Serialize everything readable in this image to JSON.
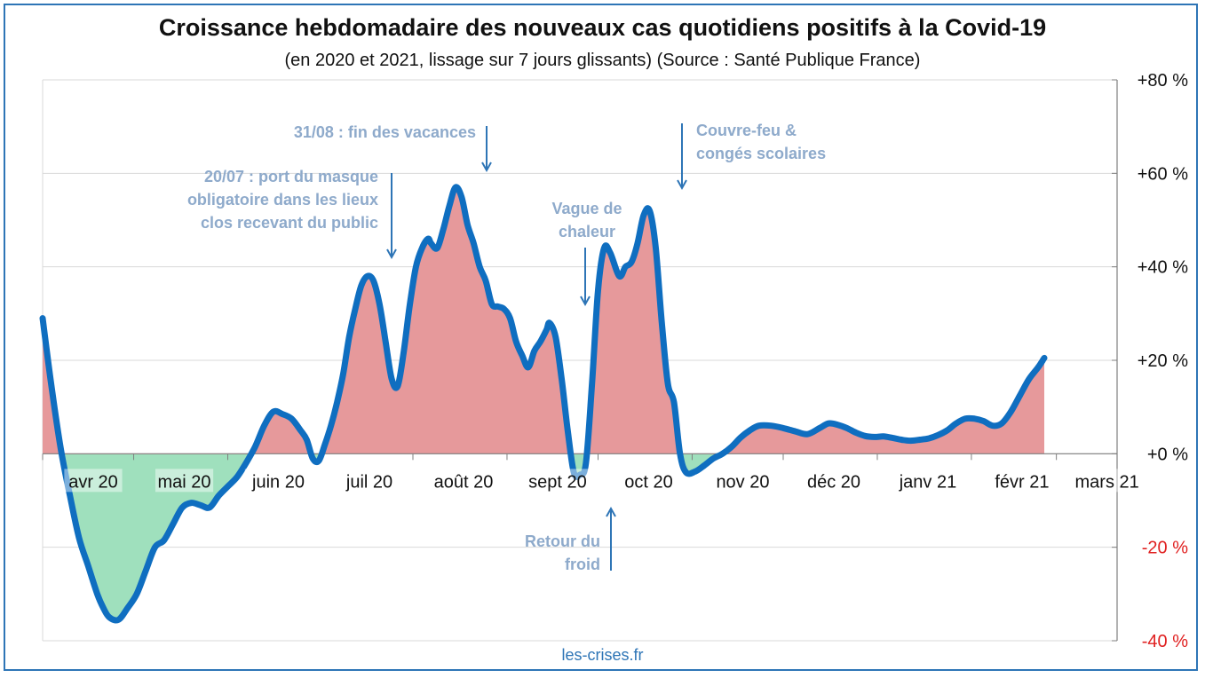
{
  "chart_data": {
    "type": "area",
    "title": "Croissance hebdomadaire des nouveaux cas quotidiens positifs à la Covid-19",
    "subtitle": "(en 2020 et 2021, lissage sur 7 jours glissants) (Source : Santé Publique France)",
    "ylim": [
      -40,
      80
    ],
    "yticks": [
      {
        "value": 80,
        "label": "+80 %",
        "negative": false
      },
      {
        "value": 60,
        "label": "+60 %",
        "negative": false
      },
      {
        "value": 40,
        "label": "+40 %",
        "negative": false
      },
      {
        "value": 20,
        "label": "+20 %",
        "negative": false
      },
      {
        "value": 0,
        "label": "+0 %",
        "negative": false
      },
      {
        "value": -20,
        "label": "-20 %",
        "negative": true
      },
      {
        "value": -40,
        "label": "-40 %",
        "negative": true
      }
    ],
    "xticks": [
      {
        "label": "avr 20",
        "day": 0
      },
      {
        "label": "mai 20",
        "day": 30
      },
      {
        "label": "juin 20",
        "day": 61
      },
      {
        "label": "juil 20",
        "day": 91
      },
      {
        "label": "août 20",
        "day": 122
      },
      {
        "label": "sept 20",
        "day": 153
      },
      {
        "label": "oct 20",
        "day": 183
      },
      {
        "label": "nov 20",
        "day": 214
      },
      {
        "label": "déc 20",
        "day": 244
      },
      {
        "label": "janv 21",
        "day": 275
      },
      {
        "label": "févr 21",
        "day": 306
      },
      {
        "label": "mars 21",
        "day": 334
      }
    ],
    "xrange_days": [
      0,
      354
    ],
    "grid": true,
    "positive_color": "#e6999b",
    "negative_color": "#9fe0bd",
    "line_color": "#0f6ec0",
    "series": [
      {
        "points": [
          [
            0,
            29
          ],
          [
            3,
            14
          ],
          [
            6,
            1
          ],
          [
            9,
            -9
          ],
          [
            12,
            -18
          ],
          [
            15,
            -24
          ],
          [
            18,
            -30
          ],
          [
            20,
            -33
          ],
          [
            22,
            -35
          ],
          [
            25,
            -35.5
          ],
          [
            28,
            -33
          ],
          [
            31,
            -30
          ],
          [
            34,
            -25
          ],
          [
            37,
            -20
          ],
          [
            40,
            -18.5
          ],
          [
            43,
            -15
          ],
          [
            46,
            -11.5
          ],
          [
            49,
            -10.5
          ],
          [
            52,
            -11
          ],
          [
            55,
            -11.5
          ],
          [
            58,
            -9
          ],
          [
            61,
            -7
          ],
          [
            64,
            -5
          ],
          [
            67,
            -2
          ],
          [
            70,
            1.5
          ],
          [
            73,
            6
          ],
          [
            76,
            9
          ],
          [
            79,
            8.5
          ],
          [
            82,
            7.5
          ],
          [
            85,
            5
          ],
          [
            87,
            3
          ],
          [
            89,
            -1
          ],
          [
            91,
            -1.5
          ],
          [
            93,
            2
          ],
          [
            95,
            6
          ],
          [
            97,
            11
          ],
          [
            99,
            17
          ],
          [
            101,
            25
          ],
          [
            103,
            31
          ],
          [
            105,
            36
          ],
          [
            107,
            38
          ],
          [
            109,
            37
          ],
          [
            111,
            32
          ],
          [
            113,
            24
          ],
          [
            115,
            16
          ],
          [
            117,
            14.5
          ],
          [
            119,
            22
          ],
          [
            121,
            32
          ],
          [
            123,
            40
          ],
          [
            125,
            44
          ],
          [
            127,
            46
          ],
          [
            128,
            45
          ],
          [
            130,
            44
          ],
          [
            132,
            48
          ],
          [
            134,
            53
          ],
          [
            136,
            57
          ],
          [
            138,
            55
          ],
          [
            140,
            49
          ],
          [
            142,
            45
          ],
          [
            144,
            40
          ],
          [
            146,
            37
          ],
          [
            148,
            32
          ],
          [
            150,
            31.5
          ],
          [
            152,
            31
          ],
          [
            154,
            29
          ],
          [
            156,
            24
          ],
          [
            158,
            21
          ],
          [
            160,
            18.5
          ],
          [
            162,
            22
          ],
          [
            164,
            24
          ],
          [
            166,
            26.5
          ],
          [
            167,
            28
          ],
          [
            169,
            25
          ],
          [
            171,
            16
          ],
          [
            173,
            5
          ],
          [
            175,
            -4
          ],
          [
            177,
            -4.5
          ],
          [
            179,
            -2
          ],
          [
            181,
            15
          ],
          [
            183,
            35
          ],
          [
            185,
            44
          ],
          [
            187,
            43
          ],
          [
            190,
            38
          ],
          [
            192,
            40
          ],
          [
            194,
            41
          ],
          [
            196,
            45
          ],
          [
            198,
            51
          ],
          [
            200,
            52
          ],
          [
            202,
            44
          ],
          [
            204,
            28
          ],
          [
            206,
            15
          ],
          [
            208,
            11
          ],
          [
            210,
            0
          ],
          [
            212,
            -4
          ],
          [
            215,
            -3.8
          ],
          [
            218,
            -2.5
          ],
          [
            221,
            -1
          ],
          [
            224,
            0
          ],
          [
            227,
            1.5
          ],
          [
            230,
            3.5
          ],
          [
            233,
            5
          ],
          [
            236,
            6
          ],
          [
            240,
            6
          ],
          [
            244,
            5.5
          ],
          [
            248,
            4.8
          ],
          [
            252,
            4.2
          ],
          [
            256,
            5.5
          ],
          [
            259,
            6.5
          ],
          [
            262,
            6.2
          ],
          [
            265,
            5.5
          ],
          [
            268,
            4.5
          ],
          [
            271,
            3.8
          ],
          [
            274,
            3.6
          ],
          [
            277,
            3.7
          ],
          [
            280,
            3.4
          ],
          [
            283,
            3
          ],
          [
            286,
            2.8
          ],
          [
            289,
            3
          ],
          [
            292,
            3.3
          ],
          [
            295,
            4
          ],
          [
            298,
            5
          ],
          [
            301,
            6.5
          ],
          [
            304,
            7.5
          ],
          [
            307,
            7.5
          ],
          [
            310,
            7
          ],
          [
            313,
            6
          ],
          [
            316,
            6.5
          ],
          [
            319,
            9
          ],
          [
            322,
            12.5
          ],
          [
            325,
            16
          ],
          [
            328,
            18.5
          ],
          [
            330,
            20.5
          ]
        ]
      }
    ],
    "annotations": [
      {
        "lines": [
          "31/08 : fin des vacances"
        ],
        "align": "end",
        "text_x": 536,
        "text_y": 155,
        "arrow": {
          "x": 548,
          "y1": 142,
          "y2": 192
        }
      },
      {
        "lines": [
          "20/07 : port du masque",
          "obligatoire  dans les lieux",
          "clos recevant du public"
        ],
        "align": "end",
        "text_x": 426,
        "text_y": 205,
        "arrow": {
          "x": 441,
          "y1": 195,
          "y2": 290
        }
      },
      {
        "lines": [
          "Vague de",
          "chaleur"
        ],
        "align": "middle",
        "text_x": 661,
        "text_y": 241,
        "arrow": {
          "x": 659,
          "y1": 279,
          "y2": 343
        }
      },
      {
        "lines": [
          "Couvre-feu  &",
          "congés scolaires"
        ],
        "align": "start",
        "text_x": 784,
        "text_y": 153,
        "arrow": {
          "x": 768,
          "y1": 139,
          "y2": 212
        }
      },
      {
        "lines": [
          "Retour du",
          "froid"
        ],
        "align": "end",
        "text_x": 676,
        "text_y": 616,
        "arrow": {
          "x": 688,
          "y1": 643,
          "y2": 573
        }
      }
    ],
    "footer": "les-crises.fr"
  }
}
